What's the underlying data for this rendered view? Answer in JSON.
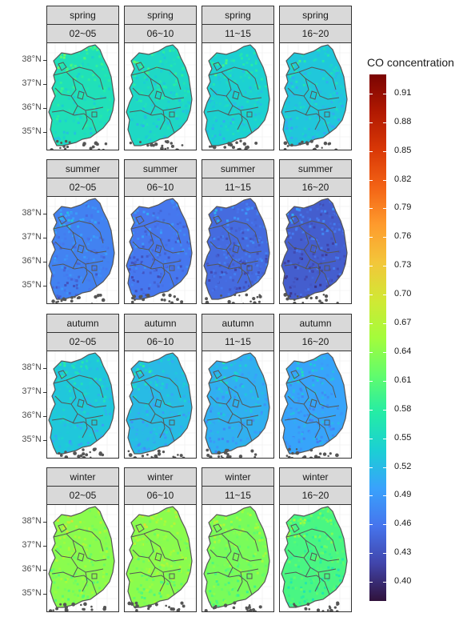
{
  "chart_data": {
    "type": "heatmap",
    "facet_rows": [
      "spring",
      "summer",
      "autumn",
      "winter"
    ],
    "facet_cols": [
      "02~05",
      "06~10",
      "11~15",
      "16~20"
    ],
    "y_ticks": [
      "38°N",
      "37°N",
      "36°N",
      "35°N"
    ],
    "legend": {
      "title": "CO concentration",
      "ticks": [
        "0.91",
        "0.88",
        "0.85",
        "0.82",
        "0.79",
        "0.76",
        "0.73",
        "0.70",
        "0.67",
        "0.64",
        "0.61",
        "0.58",
        "0.55",
        "0.52",
        "0.49",
        "0.46",
        "0.43",
        "0.40"
      ],
      "range": [
        0.38,
        0.93
      ],
      "colormap": [
        "#30123b",
        "#4145ab",
        "#4675ed",
        "#39a2fc",
        "#1bcfd4",
        "#24eca6",
        "#61fc6c",
        "#a4fc3b",
        "#d1e834",
        "#f3c63a",
        "#fe9b2d",
        "#f36315",
        "#d93806",
        "#b11901",
        "#7a0402"
      ]
    },
    "panel_values": [
      [
        0.56,
        0.55,
        0.54,
        0.53
      ],
      [
        0.47,
        0.46,
        0.45,
        0.44
      ],
      [
        0.53,
        0.52,
        0.51,
        0.5
      ],
      [
        0.64,
        0.64,
        0.63,
        0.6
      ]
    ]
  }
}
